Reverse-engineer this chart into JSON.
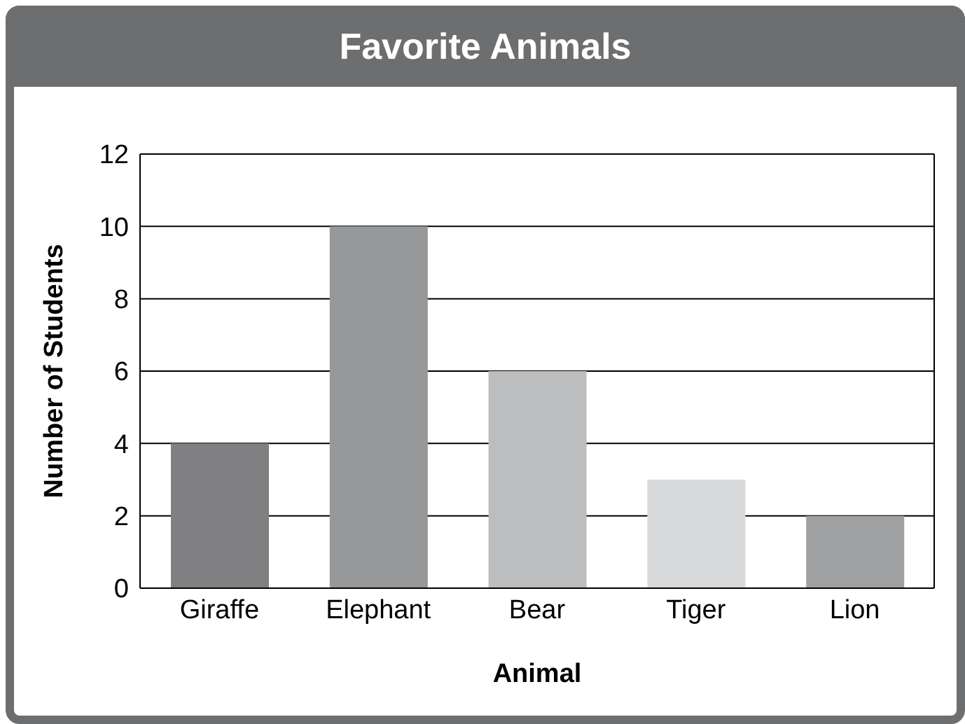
{
  "chart_data": {
    "type": "bar",
    "title": "Favorite Animals",
    "xlabel": "Animal",
    "ylabel": "Number of Students",
    "categories": [
      "Giraffe",
      "Elephant",
      "Bear",
      "Tiger",
      "Lion"
    ],
    "values": [
      4,
      10,
      6,
      3,
      2
    ],
    "colors": [
      "#808083",
      "#97989a",
      "#bcbdbf",
      "#d9dadb",
      "#a0a1a3"
    ],
    "ylim": [
      0,
      12
    ],
    "yticks": [
      0,
      2,
      4,
      6,
      8,
      10,
      12
    ],
    "grid": "y",
    "legend": false
  }
}
